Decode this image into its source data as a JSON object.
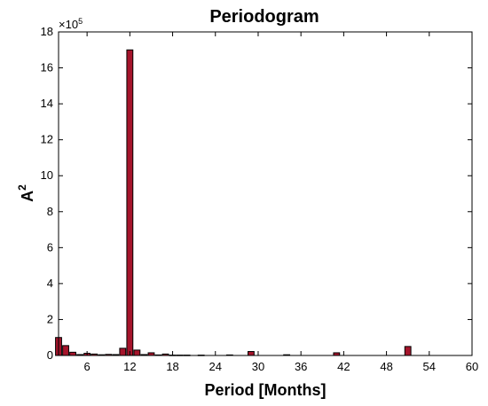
{
  "chart_data": {
    "type": "bar",
    "title": "Periodogram",
    "xlabel": "Period [Months]",
    "ylabel": "A",
    "ylabel_superscript": "2",
    "y_multiplier_base": "×10",
    "y_multiplier_exponent": "5",
    "xlim": [
      2,
      60
    ],
    "ylim": [
      0,
      18
    ],
    "xticks": [
      6,
      12,
      18,
      24,
      30,
      36,
      42,
      48,
      54,
      60
    ],
    "yticks": [
      0,
      2,
      4,
      6,
      8,
      10,
      12,
      14,
      16,
      18
    ],
    "grid": false,
    "bar_color": "#a5142b",
    "x": [
      2,
      3,
      4,
      5,
      6,
      7,
      8,
      9,
      10,
      11,
      12,
      13,
      14,
      15,
      16,
      17,
      18,
      19,
      20,
      22,
      26,
      29,
      34,
      41,
      51
    ],
    "values": [
      1.0,
      0.55,
      0.18,
      0.05,
      0.12,
      0.08,
      0.04,
      0.06,
      0.05,
      0.4,
      17.0,
      0.3,
      0.05,
      0.15,
      0.03,
      0.08,
      0.02,
      0.02,
      0.02,
      0.02,
      0.03,
      0.22,
      0.04,
      0.15,
      0.5
    ]
  }
}
